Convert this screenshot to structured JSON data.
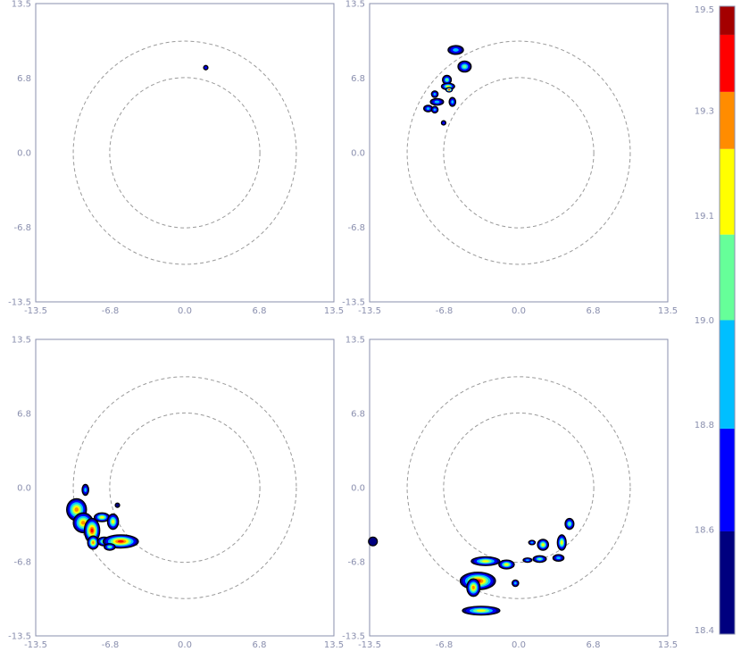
{
  "chart_data": [
    {
      "type": "contour",
      "panel": "top-left",
      "xlim": [
        -13.5,
        13.5
      ],
      "ylim": [
        -13.5,
        13.5
      ],
      "x_ticks": [
        "-13.5",
        "-6.8",
        "0.0",
        "6.8",
        "13.5"
      ],
      "y_ticks": [
        "-13.5",
        "-6.8",
        "0.0",
        "6.8",
        "13.5"
      ],
      "circles": [
        {
          "radius": 6.8,
          "style": "dashed"
        },
        {
          "radius": 10.1,
          "style": "dashed"
        }
      ],
      "blobs": [
        {
          "x": 1.9,
          "y": 7.7,
          "rx": 0.2,
          "ry": 0.2,
          "level": 18.7
        }
      ]
    },
    {
      "type": "contour",
      "panel": "top-right",
      "xlim": [
        -13.5,
        13.5
      ],
      "ylim": [
        -13.5,
        13.5
      ],
      "x_ticks": [
        "-13.5",
        "-6.8",
        "0.0",
        "6.8",
        "13.5"
      ],
      "y_ticks": [
        "-13.5",
        "-6.8",
        "0.0",
        "6.8",
        "13.5"
      ],
      "circles": [
        {
          "radius": 6.8,
          "style": "dashed"
        },
        {
          "radius": 10.1,
          "style": "dashed"
        }
      ],
      "blobs": [
        {
          "x": -5.7,
          "y": 9.3,
          "rx": 0.7,
          "ry": 0.4,
          "level": 18.9
        },
        {
          "x": -4.9,
          "y": 7.8,
          "rx": 0.6,
          "ry": 0.5,
          "level": 19.0
        },
        {
          "x": -6.5,
          "y": 6.6,
          "rx": 0.4,
          "ry": 0.4,
          "level": 19.0
        },
        {
          "x": -6.4,
          "y": 6.0,
          "rx": 0.6,
          "ry": 0.3,
          "level": 19.2
        },
        {
          "x": -6.3,
          "y": 5.7,
          "rx": 0.3,
          "ry": 0.2,
          "level": 19.4
        },
        {
          "x": -7.6,
          "y": 5.3,
          "rx": 0.3,
          "ry": 0.3,
          "level": 18.9
        },
        {
          "x": -7.4,
          "y": 4.6,
          "rx": 0.6,
          "ry": 0.3,
          "level": 18.9
        },
        {
          "x": -6.0,
          "y": 4.6,
          "rx": 0.3,
          "ry": 0.4,
          "level": 18.8
        },
        {
          "x": -8.2,
          "y": 4.0,
          "rx": 0.4,
          "ry": 0.3,
          "level": 18.8
        },
        {
          "x": -7.6,
          "y": 3.9,
          "rx": 0.3,
          "ry": 0.3,
          "level": 18.8
        },
        {
          "x": -6.8,
          "y": 2.7,
          "rx": 0.2,
          "ry": 0.2,
          "level": 18.7
        }
      ]
    },
    {
      "type": "contour",
      "panel": "bottom-left",
      "xlim": [
        -13.5,
        13.5
      ],
      "ylim": [
        -13.5,
        13.5
      ],
      "x_ticks": [
        "-13.5",
        "-6.8",
        "0.0",
        "6.8",
        "13.5"
      ],
      "y_ticks": [
        "-13.5",
        "-6.8",
        "0.0",
        "6.8",
        "13.5"
      ],
      "circles": [
        {
          "radius": 6.8,
          "style": "dashed"
        },
        {
          "radius": 10.1,
          "style": "dashed"
        }
      ],
      "blobs": [
        {
          "x": -9.0,
          "y": -0.2,
          "rx": 0.3,
          "ry": 0.5,
          "level": 18.9
        },
        {
          "x": -9.8,
          "y": -2.0,
          "rx": 0.9,
          "ry": 1.0,
          "level": 19.3
        },
        {
          "x": -9.2,
          "y": -3.2,
          "rx": 0.9,
          "ry": 0.9,
          "level": 19.3
        },
        {
          "x": -8.4,
          "y": -3.9,
          "rx": 0.7,
          "ry": 1.1,
          "level": 19.4
        },
        {
          "x": -7.5,
          "y": -2.7,
          "rx": 0.7,
          "ry": 0.4,
          "level": 19.1
        },
        {
          "x": -6.5,
          "y": -3.1,
          "rx": 0.5,
          "ry": 0.7,
          "level": 19.2
        },
        {
          "x": -8.3,
          "y": -5.0,
          "rx": 0.5,
          "ry": 0.6,
          "level": 19.3
        },
        {
          "x": -7.3,
          "y": -4.9,
          "rx": 0.6,
          "ry": 0.4,
          "level": 19.1
        },
        {
          "x": -5.8,
          "y": -4.9,
          "rx": 1.6,
          "ry": 0.6,
          "level": 19.4
        },
        {
          "x": -6.8,
          "y": -5.4,
          "rx": 0.5,
          "ry": 0.3,
          "level": 19.0
        },
        {
          "x": -6.1,
          "y": -1.6,
          "rx": 0.2,
          "ry": 0.2,
          "level": 18.5
        }
      ]
    },
    {
      "type": "contour",
      "panel": "bottom-right",
      "xlim": [
        -13.5,
        13.5
      ],
      "ylim": [
        -13.5,
        13.5
      ],
      "x_ticks": [
        "-13.5",
        "-6.8",
        "0.0",
        "6.8",
        "13.5"
      ],
      "y_ticks": [
        "-13.5",
        "-6.8",
        "0.0",
        "6.8",
        "13.5"
      ],
      "circles": [
        {
          "radius": 6.8,
          "style": "dashed"
        },
        {
          "radius": 10.1,
          "style": "dashed"
        }
      ],
      "blobs": [
        {
          "x": -13.2,
          "y": -4.9,
          "rx": 0.4,
          "ry": 0.4,
          "level": 18.5
        },
        {
          "x": -3.7,
          "y": -8.5,
          "rx": 1.6,
          "ry": 0.8,
          "level": 19.4
        },
        {
          "x": -4.1,
          "y": -9.1,
          "rx": 0.6,
          "ry": 0.8,
          "level": 19.3
        },
        {
          "x": -3.0,
          "y": -6.7,
          "rx": 1.3,
          "ry": 0.4,
          "level": 19.1
        },
        {
          "x": -1.1,
          "y": -7.0,
          "rx": 0.7,
          "ry": 0.4,
          "level": 19.1
        },
        {
          "x": -3.4,
          "y": -11.2,
          "rx": 1.7,
          "ry": 0.4,
          "level": 19.1
        },
        {
          "x": -0.3,
          "y": -8.7,
          "rx": 0.3,
          "ry": 0.3,
          "level": 18.8
        },
        {
          "x": 0.8,
          "y": -6.6,
          "rx": 0.4,
          "ry": 0.2,
          "level": 18.8
        },
        {
          "x": 1.9,
          "y": -6.5,
          "rx": 0.6,
          "ry": 0.3,
          "level": 19.0
        },
        {
          "x": 2.2,
          "y": -5.2,
          "rx": 0.5,
          "ry": 0.5,
          "level": 19.1
        },
        {
          "x": 3.6,
          "y": -6.4,
          "rx": 0.5,
          "ry": 0.3,
          "level": 18.9
        },
        {
          "x": 3.9,
          "y": -5.0,
          "rx": 0.4,
          "ry": 0.7,
          "level": 19.2
        },
        {
          "x": 4.6,
          "y": -3.3,
          "rx": 0.4,
          "ry": 0.5,
          "level": 19.0
        },
        {
          "x": 1.2,
          "y": -5.0,
          "rx": 0.3,
          "ry": 0.2,
          "level": 18.8
        }
      ]
    }
  ],
  "colorbar": {
    "min": 18.4,
    "max": 19.5,
    "tick_labels": [
      "18.4",
      "18.6",
      "18.8",
      "19.0",
      "19.1",
      "19.3",
      "19.5"
    ],
    "bands": [
      {
        "from": 18.4,
        "to": 18.58,
        "color": "#00007f"
      },
      {
        "from": 18.58,
        "to": 18.76,
        "color": "#0000ff"
      },
      {
        "from": 18.76,
        "to": 18.95,
        "color": "#00bfff"
      },
      {
        "from": 18.95,
        "to": 19.1,
        "color": "#66ff99"
      },
      {
        "from": 19.1,
        "to": 19.25,
        "color": "#ffff00"
      },
      {
        "from": 19.25,
        "to": 19.35,
        "color": "#ff8c00"
      },
      {
        "from": 19.35,
        "to": 19.45,
        "color": "#ff0000"
      },
      {
        "from": 19.45,
        "to": 19.5,
        "color": "#a40000"
      }
    ]
  },
  "colors": {
    "axis": "#8a8fae",
    "tick_text": "#8a8fae",
    "circle": "#9a9a9a",
    "outline": "#000000"
  }
}
